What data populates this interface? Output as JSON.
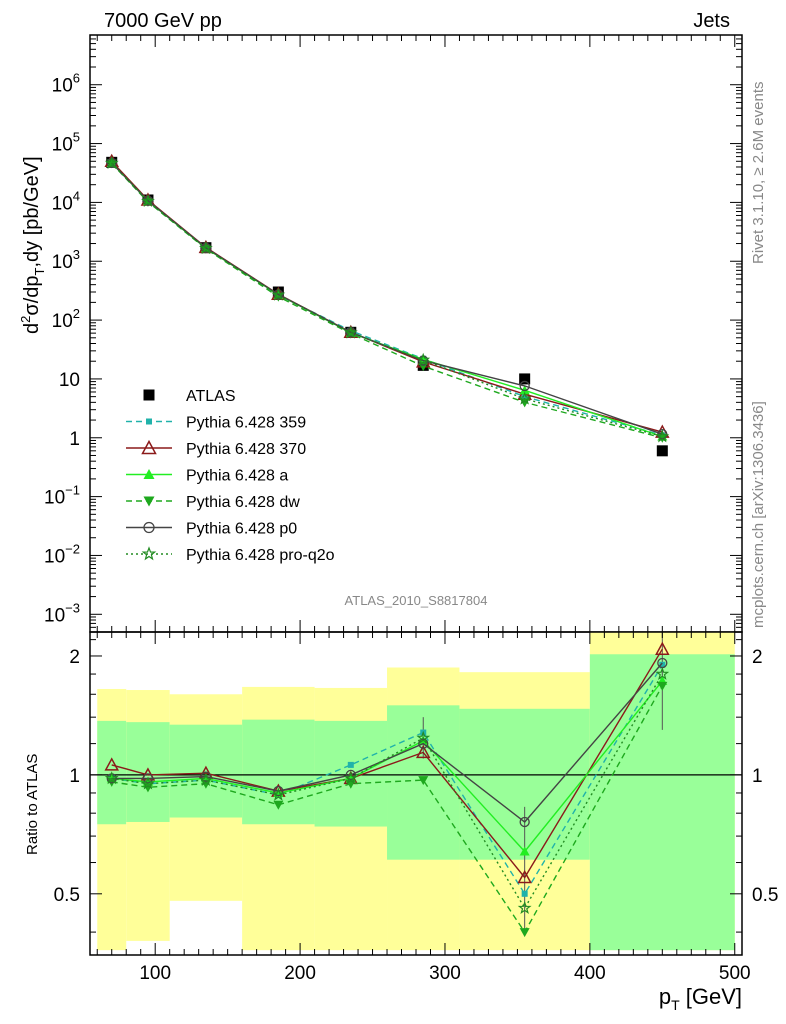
{
  "header": {
    "left": "7000 GeV pp",
    "right": "Jets"
  },
  "side_text": {
    "rivet": "Rivet 3.1.10, ≥ 2.6M events",
    "mcplots": "mcplots.cern.ch [arXiv:1306.3436]"
  },
  "analysis_id": "ATLAS_2010_S8817804",
  "chart_data": [
    {
      "type": "line",
      "panel": "main",
      "ylabel": "d²σ/dp_T,dy [pb/GeV]",
      "yscale": "log",
      "ylim": [
        0.0005,
        7000000
      ],
      "xlim": [
        55,
        505
      ],
      "ytick_labels": [
        {
          "v": 0.001,
          "base": "10",
          "exp": "−3"
        },
        {
          "v": 0.01,
          "base": "10",
          "exp": "−2"
        },
        {
          "v": 0.1,
          "base": "10",
          "exp": "−1"
        },
        {
          "v": 1,
          "base": "1",
          "exp": ""
        },
        {
          "v": 10,
          "base": "10",
          "exp": ""
        },
        {
          "v": 100,
          "base": "10",
          "exp": "2"
        },
        {
          "v": 1000,
          "base": "10",
          "exp": "3"
        },
        {
          "v": 10000,
          "base": "10",
          "exp": "4"
        },
        {
          "v": 100000,
          "base": "10",
          "exp": "5"
        },
        {
          "v": 1000000,
          "base": "10",
          "exp": "6"
        }
      ],
      "x": [
        70,
        95,
        135,
        185,
        235,
        285,
        355,
        450
      ],
      "series": [
        {
          "name": "ATLAS",
          "color": "#000000",
          "marker": "square",
          "dash": "none",
          "values": [
            48000,
            11000,
            1700,
            300,
            62,
            17,
            10,
            0.6
          ]
        },
        {
          "name": "Pythia 6.428 359",
          "color": "#20b2aa",
          "marker": "square-small",
          "dash": "dashed",
          "values": [
            47000,
            10300,
            1650,
            265,
            66,
            22,
            5.0,
            1.1
          ]
        },
        {
          "name": "Pythia 6.428 370",
          "color": "#8b1a1a",
          "marker": "triangle-open",
          "dash": "solid",
          "values": [
            50000,
            11000,
            1720,
            275,
            62,
            19.5,
            5.5,
            1.25
          ]
        },
        {
          "name": "Pythia 6.428 a",
          "color": "#22ee22",
          "marker": "triangle-filled",
          "dash": "solid",
          "values": [
            47000,
            10600,
            1660,
            270,
            61,
            21.5,
            6.4,
            1.05
          ]
        },
        {
          "name": "Pythia 6.428 dw",
          "color": "#1ea81e",
          "marker": "triangle-down",
          "dash": "dashed",
          "values": [
            46000,
            10200,
            1630,
            250,
            59,
            16.5,
            4.0,
            1.0
          ]
        },
        {
          "name": "Pythia 6.428 p0",
          "color": "#444444",
          "marker": "circle-open",
          "dash": "solid",
          "values": [
            47000,
            10700,
            1690,
            272,
            62,
            20.5,
            7.6,
            1.15
          ]
        },
        {
          "name": "Pythia 6.428 pro-q2o",
          "color": "#228b22",
          "marker": "star",
          "dash": "dotted",
          "values": [
            46500,
            10500,
            1660,
            268,
            61,
            21,
            4.6,
            1.05
          ]
        }
      ]
    },
    {
      "type": "line",
      "panel": "ratio",
      "ylabel": "Ratio to ATLAS",
      "xlabel": "p_T [GeV]",
      "yscale": "log",
      "ylim": [
        0.35,
        2.3
      ],
      "xlim": [
        55,
        505
      ],
      "xticks": [
        100,
        200,
        300,
        400,
        500
      ],
      "yticks": [
        0.5,
        1,
        2
      ],
      "reference_line": 1,
      "bands": [
        {
          "xlo": 60,
          "xhi": 80,
          "stat": [
            0.75,
            1.37
          ],
          "total": [
            0.36,
            1.65
          ]
        },
        {
          "xlo": 80,
          "xhi": 110,
          "stat": [
            0.76,
            1.36
          ],
          "total": [
            0.38,
            1.64
          ]
        },
        {
          "xlo": 110,
          "xhi": 160,
          "stat": [
            0.78,
            1.34
          ],
          "total": [
            0.48,
            1.6
          ]
        },
        {
          "xlo": 160,
          "xhi": 210,
          "stat": [
            0.75,
            1.38
          ],
          "total": [
            0.36,
            1.67
          ]
        },
        {
          "xlo": 210,
          "xhi": 260,
          "stat": [
            0.74,
            1.37
          ],
          "total": [
            0.36,
            1.66
          ]
        },
        {
          "xlo": 260,
          "xhi": 310,
          "stat": [
            0.61,
            1.5
          ],
          "total": [
            0.36,
            1.87
          ]
        },
        {
          "xlo": 310,
          "xhi": 400,
          "stat": [
            0.61,
            1.47
          ],
          "total": [
            0.36,
            1.82
          ]
        },
        {
          "xlo": 400,
          "xhi": 500,
          "stat": [
            0.36,
            2.02
          ],
          "total": [
            0.36,
            2.4
          ]
        }
      ],
      "x": [
        70,
        95,
        135,
        185,
        235,
        285,
        355,
        450
      ],
      "series": [
        {
          "name": "Pythia 6.428 359",
          "values": [
            0.98,
            0.95,
            0.97,
            0.89,
            1.06,
            1.28,
            0.5,
            1.9
          ]
        },
        {
          "name": "Pythia 6.428 370",
          "values": [
            1.06,
            1.0,
            1.01,
            0.91,
            0.98,
            1.14,
            0.55,
            2.08
          ]
        },
        {
          "name": "Pythia 6.428 a",
          "values": [
            0.98,
            0.96,
            0.98,
            0.9,
            0.98,
            1.22,
            0.64,
            1.73
          ]
        },
        {
          "name": "Pythia 6.428 dw",
          "values": [
            0.96,
            0.93,
            0.95,
            0.84,
            0.95,
            0.97,
            0.4,
            1.68
          ]
        },
        {
          "name": "Pythia 6.428 p0",
          "values": [
            0.98,
            0.98,
            0.99,
            0.91,
            1.0,
            1.2,
            0.76,
            1.92
          ]
        },
        {
          "name": "Pythia 6.428 pro-q2o",
          "values": [
            0.98,
            0.95,
            0.97,
            0.89,
            0.98,
            1.24,
            0.46,
            1.8
          ]
        }
      ],
      "error_bars": {
        "x": [
          285,
          355,
          450
        ],
        "lo": [
          1.1,
          0.4,
          1.3
        ],
        "hi": [
          1.4,
          0.83,
          2.3
        ]
      }
    }
  ]
}
